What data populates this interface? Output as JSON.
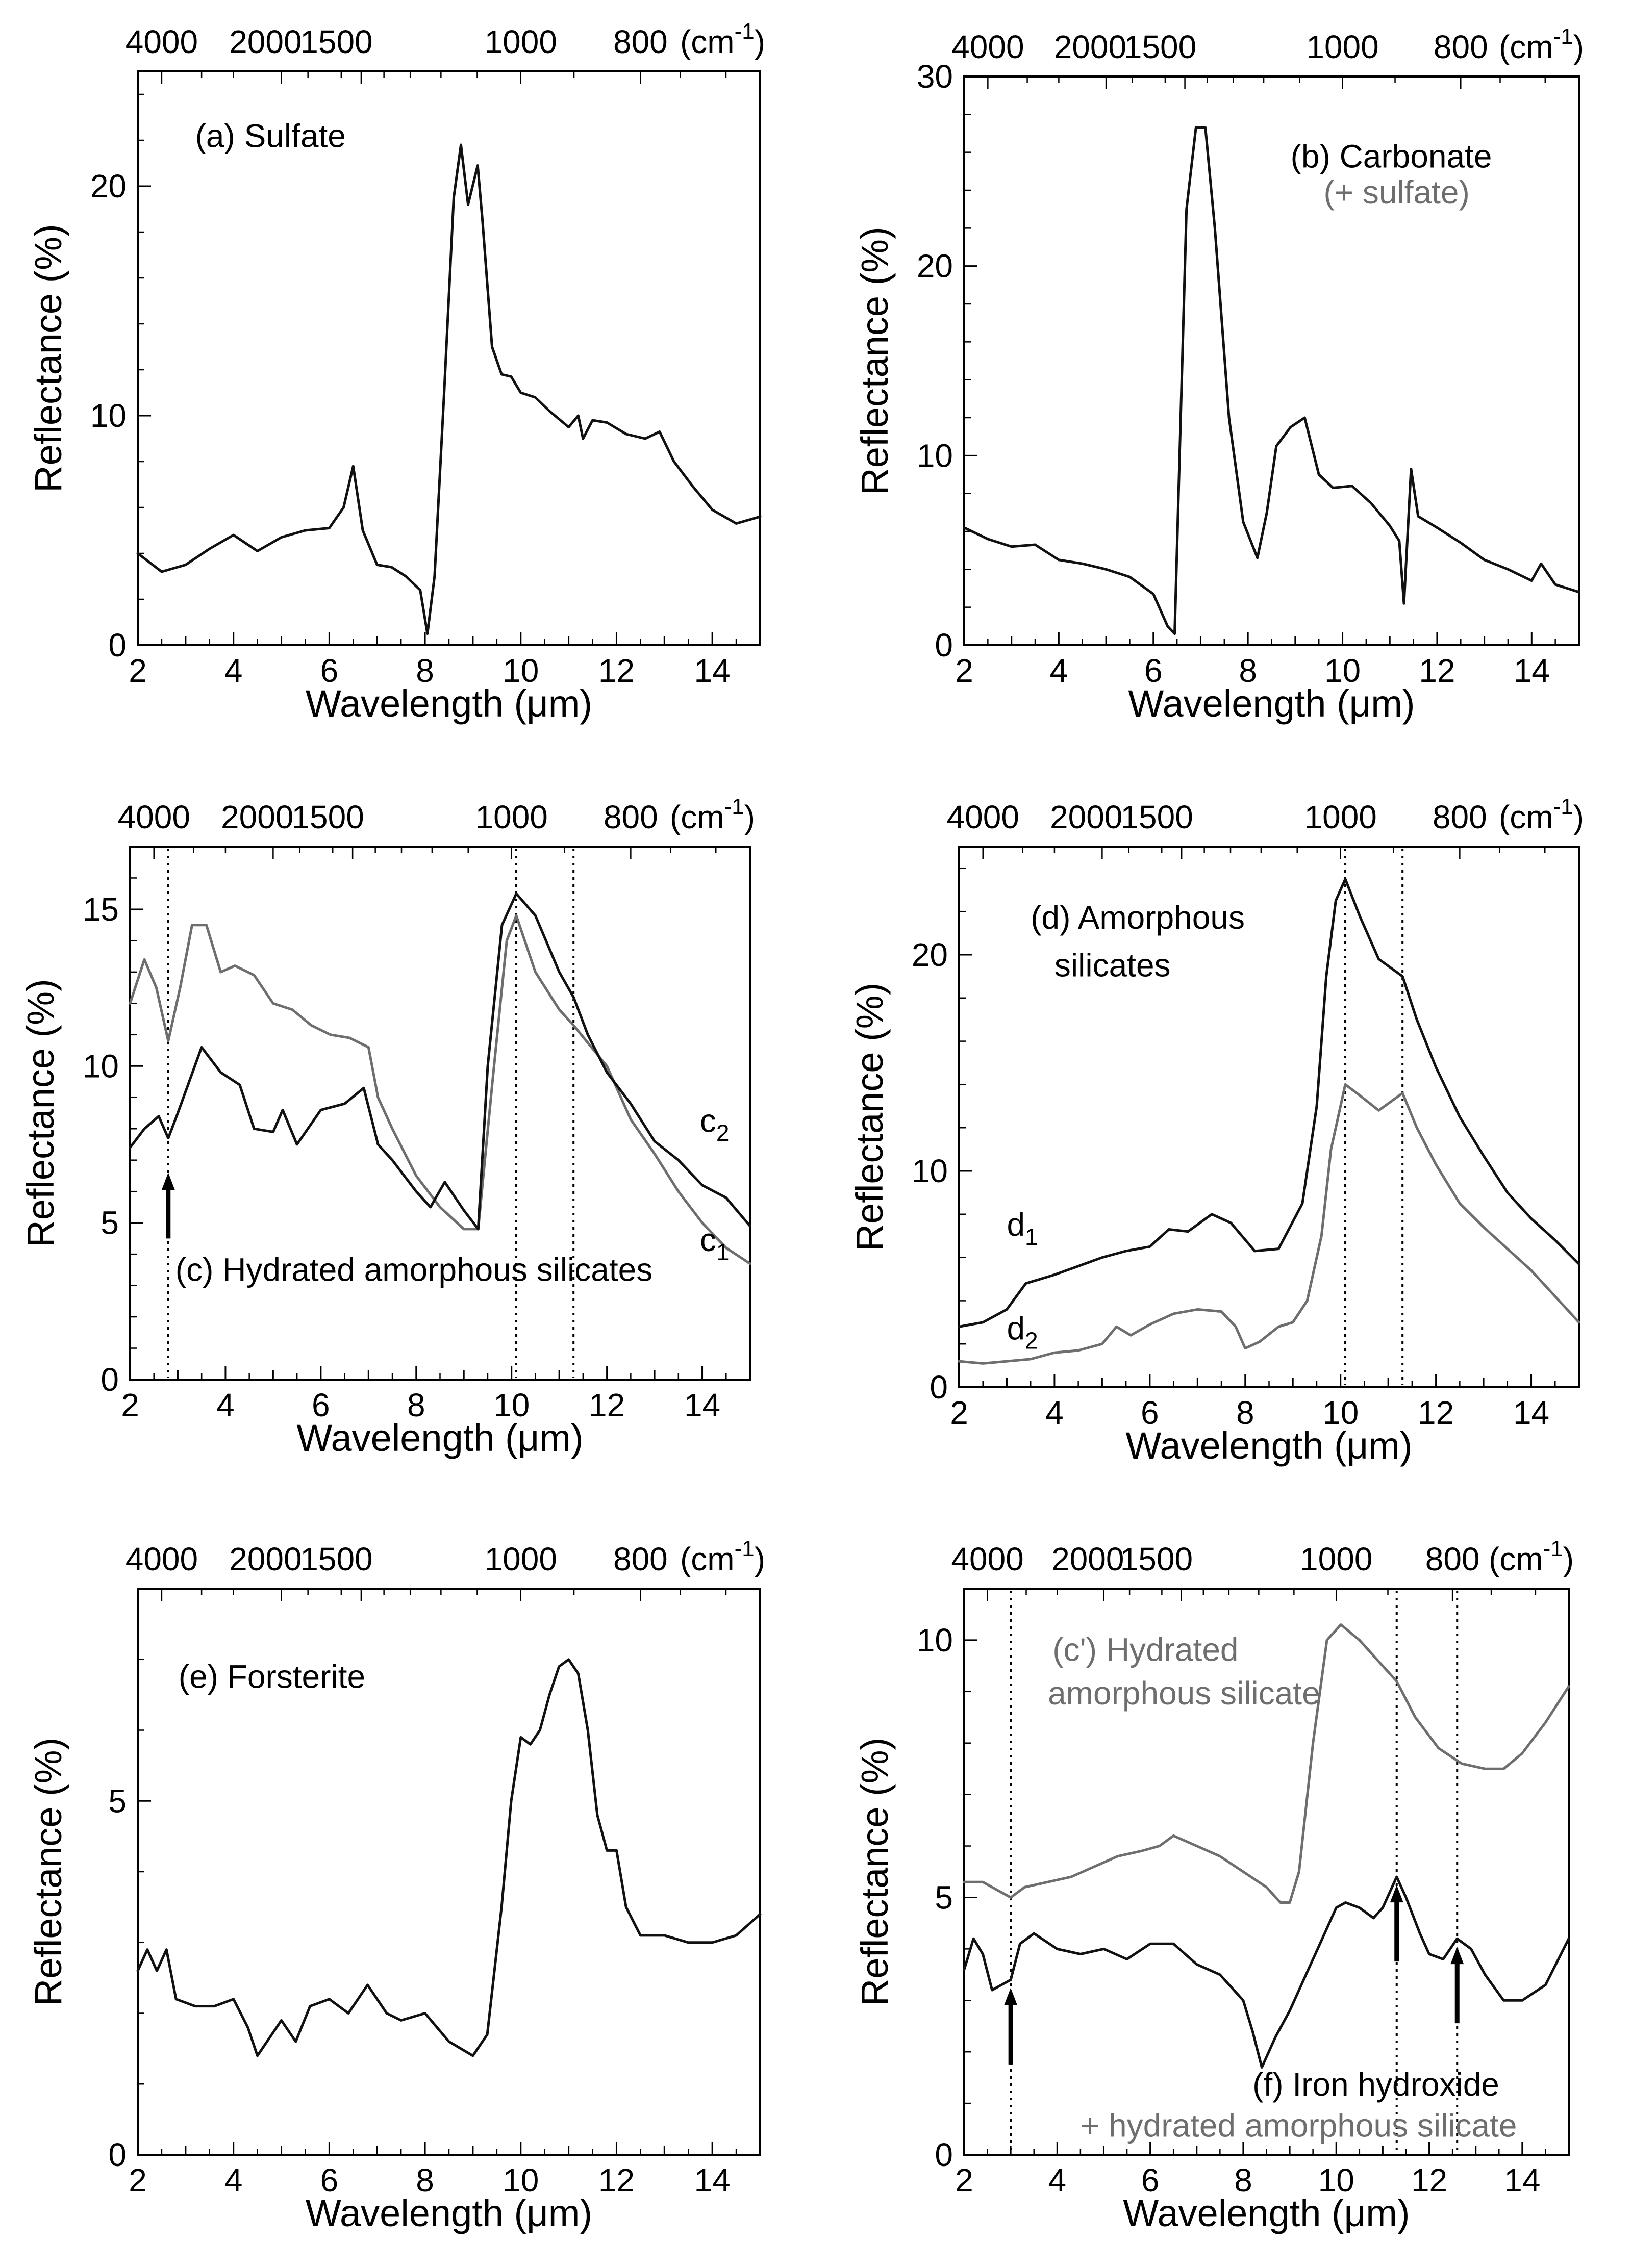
{
  "colors": {
    "black": "#111111",
    "gray": "#6e6e6e",
    "ink": "#000000"
  },
  "chart_data": [
    {
      "type": "line",
      "panel": "a",
      "title": "(a) Sulfate",
      "xlabel": "Wavelength (μm)",
      "ylabel": "Reflectance (%)",
      "xlim": [
        2,
        15
      ],
      "ylim": [
        0,
        25
      ],
      "x_ticks": [
        2,
        4,
        6,
        8,
        10,
        12,
        14
      ],
      "y_ticks": [
        0,
        10,
        20
      ],
      "top_axis": {
        "unit": "(cm-1)",
        "labels": [
          "4000",
          "2000",
          "1500",
          "1000",
          "800"
        ],
        "wavenumbers": [
          4000,
          2000,
          1500,
          1000,
          800
        ]
      },
      "series": [
        {
          "name": "Sulfate",
          "color": "black",
          "x": [
            2,
            2.5,
            3,
            3.5,
            4,
            4.5,
            5,
            5.5,
            6,
            6.3,
            6.5,
            6.7,
            7,
            7.3,
            7.6,
            7.9,
            8.05,
            8.2,
            8.4,
            8.6,
            8.75,
            8.9,
            9.1,
            9.2,
            9.4,
            9.6,
            9.8,
            10,
            10.3,
            10.6,
            11,
            11.2,
            11.3,
            11.5,
            11.8,
            12.2,
            12.6,
            12.9,
            13.2,
            13.6,
            14,
            14.5,
            15
          ],
          "y": [
            4,
            3.2,
            3.5,
            4.2,
            4.8,
            4.1,
            4.7,
            5.0,
            5.1,
            6.0,
            7.8,
            5.0,
            3.5,
            3.4,
            3.0,
            2.4,
            0.5,
            3.0,
            11.0,
            19.5,
            21.8,
            19.2,
            20.9,
            18.5,
            13.0,
            11.8,
            11.7,
            11.0,
            10.8,
            10.2,
            9.5,
            10.0,
            9.0,
            9.8,
            9.7,
            9.2,
            9.0,
            9.3,
            8.0,
            6.9,
            5.9,
            5.3,
            5.6
          ]
        }
      ]
    },
    {
      "type": "line",
      "panel": "b",
      "title": "(b) Carbonate",
      "subtitle": "(+ sulfate)",
      "xlabel": "Wavelength (μm)",
      "ylabel": "Reflectance (%)",
      "xlim": [
        2,
        15
      ],
      "ylim": [
        0,
        30
      ],
      "x_ticks": [
        2,
        4,
        6,
        8,
        10,
        12,
        14
      ],
      "y_ticks": [
        0,
        10,
        20,
        30
      ],
      "top_axis": {
        "unit": "(cm-1)",
        "labels": [
          "4000",
          "2000",
          "1500",
          "1000",
          "800"
        ],
        "wavenumbers": [
          4000,
          2000,
          1500,
          1000,
          800
        ]
      },
      "series": [
        {
          "name": "Carbonate",
          "color": "black",
          "x": [
            2,
            2.5,
            3,
            3.5,
            4,
            4.5,
            5,
            5.5,
            6,
            6.3,
            6.45,
            6.7,
            6.9,
            7.1,
            7.3,
            7.6,
            7.9,
            8.2,
            8.4,
            8.6,
            8.9,
            9.2,
            9.5,
            9.8,
            10.2,
            10.6,
            11,
            11.2,
            11.3,
            11.45,
            11.6,
            12,
            12.5,
            13,
            13.5,
            14,
            14.2,
            14.5,
            15
          ],
          "y": [
            6.2,
            5.6,
            5.2,
            5.3,
            4.5,
            4.3,
            4.0,
            3.6,
            2.7,
            1.0,
            0.6,
            23.0,
            27.3,
            27.3,
            22.0,
            12.0,
            6.5,
            4.6,
            7.0,
            10.5,
            11.5,
            12.0,
            9.0,
            8.3,
            8.4,
            7.5,
            6.3,
            5.5,
            2.2,
            9.3,
            6.8,
            6.2,
            5.4,
            4.5,
            4.0,
            3.4,
            4.3,
            3.2,
            2.8
          ]
        }
      ]
    },
    {
      "type": "line",
      "panel": "c",
      "title": "(c) Hydrated amorphous silicates",
      "xlabel": "Wavelength (μm)",
      "ylabel": "Reflectance (%)",
      "xlim": [
        2,
        15
      ],
      "ylim": [
        0,
        17
      ],
      "x_ticks": [
        2,
        4,
        6,
        8,
        10,
        12,
        14
      ],
      "y_ticks": [
        0,
        5,
        10,
        15
      ],
      "top_axis": {
        "unit": "(cm-1)",
        "labels": [
          "4000",
          "2000",
          "1500",
          "1000",
          "800"
        ],
        "wavenumbers": [
          4000,
          2000,
          1500,
          1000,
          800
        ]
      },
      "vlines": [
        2.8,
        10.1,
        11.3
      ],
      "arrow_at": 2.8,
      "series": [
        {
          "name": "c1",
          "label": "c",
          "sub": "1",
          "color": "gray",
          "x": [
            2,
            2.3,
            2.55,
            2.8,
            3.05,
            3.3,
            3.6,
            3.9,
            4.2,
            4.6,
            5.0,
            5.4,
            5.8,
            6.2,
            6.6,
            7.0,
            7.2,
            7.5,
            8.0,
            8.5,
            9.0,
            9.3,
            9.6,
            9.9,
            10.1,
            10.5,
            11,
            11.3,
            12,
            12.5,
            13,
            13.5,
            14,
            14.5,
            15
          ],
          "y": [
            12.0,
            13.4,
            12.5,
            10.8,
            12.5,
            14.5,
            14.5,
            13.0,
            13.2,
            12.9,
            12.0,
            11.8,
            11.3,
            11.0,
            10.9,
            10.6,
            9.0,
            8.0,
            6.5,
            5.5,
            4.8,
            4.8,
            9.5,
            14.0,
            14.8,
            13.0,
            11.8,
            11.3,
            10.0,
            8.3,
            7.2,
            6.0,
            5.0,
            4.2,
            3.7
          ]
        },
        {
          "name": "c2",
          "label": "c",
          "sub": "2",
          "color": "black",
          "x": [
            2,
            2.3,
            2.6,
            2.8,
            3.0,
            3.5,
            3.9,
            4.3,
            4.6,
            5.0,
            5.2,
            5.5,
            6.0,
            6.5,
            6.9,
            7.2,
            7.5,
            8.0,
            8.3,
            8.6,
            9.0,
            9.3,
            9.5,
            9.8,
            10.1,
            10.5,
            11,
            11.3,
            11.6,
            12,
            12.5,
            13,
            13.5,
            14,
            14.5,
            15
          ],
          "y": [
            7.4,
            8.0,
            8.4,
            7.7,
            8.5,
            10.6,
            9.8,
            9.4,
            8.0,
            7.9,
            8.6,
            7.5,
            8.6,
            8.8,
            9.3,
            7.5,
            7.0,
            6.0,
            5.5,
            6.3,
            5.4,
            4.8,
            10.0,
            14.5,
            15.5,
            14.8,
            13.0,
            12.2,
            11.0,
            9.8,
            8.8,
            7.6,
            7.0,
            6.2,
            5.8,
            4.9
          ]
        }
      ]
    },
    {
      "type": "line",
      "panel": "d",
      "title": "(d) Amorphous",
      "subtitle": "silicates",
      "xlabel": "Wavelength (μm)",
      "ylabel": "Reflectance (%)",
      "xlim": [
        2,
        15
      ],
      "ylim": [
        0,
        25
      ],
      "x_ticks": [
        2,
        4,
        6,
        8,
        10,
        12,
        14
      ],
      "y_ticks": [
        0,
        10,
        20
      ],
      "top_axis": {
        "unit": "(cm-1)",
        "labels": [
          "4000",
          "2000",
          "1500",
          "1000",
          "800"
        ],
        "wavenumbers": [
          4000,
          2000,
          1500,
          1000,
          800
        ]
      },
      "vlines": [
        10.1,
        11.3
      ],
      "series": [
        {
          "name": "d1",
          "label": "d",
          "sub": "1",
          "color": "black",
          "x": [
            2,
            2.5,
            3,
            3.4,
            4,
            4.5,
            5,
            5.5,
            6,
            6.4,
            6.8,
            7.3,
            7.7,
            8.2,
            8.7,
            9.2,
            9.5,
            9.7,
            9.9,
            10.1,
            10.4,
            10.8,
            11.3,
            11.6,
            12,
            12.5,
            13,
            13.5,
            14,
            14.5,
            15
          ],
          "y": [
            2.8,
            3.0,
            3.6,
            4.8,
            5.2,
            5.6,
            6.0,
            6.3,
            6.5,
            7.3,
            7.2,
            8.0,
            7.6,
            6.3,
            6.4,
            8.5,
            13.0,
            19.0,
            22.5,
            23.5,
            21.8,
            19.8,
            19.0,
            17.0,
            14.8,
            12.5,
            10.7,
            9.0,
            7.8,
            6.8,
            5.7
          ]
        },
        {
          "name": "d2",
          "label": "d",
          "sub": "2",
          "color": "gray",
          "x": [
            2,
            2.5,
            3,
            3.5,
            4,
            4.5,
            5,
            5.3,
            5.6,
            6,
            6.5,
            7.0,
            7.5,
            7.8,
            8.0,
            8.3,
            8.7,
            9.0,
            9.3,
            9.6,
            9.8,
            10.1,
            10.4,
            10.8,
            11.3,
            11.6,
            12,
            12.5,
            13,
            13.5,
            14,
            14.5,
            15
          ],
          "y": [
            1.2,
            1.1,
            1.2,
            1.3,
            1.6,
            1.7,
            2.0,
            2.8,
            2.4,
            2.9,
            3.4,
            3.6,
            3.5,
            2.8,
            1.8,
            2.1,
            2.8,
            3.0,
            4.0,
            7.0,
            11.0,
            14.0,
            13.5,
            12.8,
            13.6,
            12.0,
            10.3,
            8.5,
            7.4,
            6.4,
            5.4,
            4.2,
            3.0
          ]
        }
      ]
    },
    {
      "type": "line",
      "panel": "e",
      "title": "(e) Forsterite",
      "xlabel": "Wavelength (μm)",
      "ylabel": "Reflectance (%)",
      "xlim": [
        2,
        15
      ],
      "ylim": [
        0,
        8
      ],
      "x_ticks": [
        2,
        4,
        6,
        8,
        10,
        12,
        14
      ],
      "y_ticks": [
        0,
        5
      ],
      "top_axis": {
        "unit": "(cm-1)",
        "labels": [
          "4000",
          "2000",
          "1500",
          "1000",
          "800"
        ],
        "wavenumbers": [
          4000,
          2000,
          1500,
          1000,
          800
        ]
      },
      "series": [
        {
          "name": "Forsterite",
          "color": "black",
          "x": [
            2,
            2.2,
            2.4,
            2.6,
            2.8,
            3.2,
            3.6,
            4.0,
            4.3,
            4.5,
            4.7,
            5.0,
            5.3,
            5.6,
            6.0,
            6.4,
            6.8,
            7.2,
            7.5,
            8.0,
            8.5,
            9.0,
            9.3,
            9.6,
            9.8,
            10.0,
            10.2,
            10.4,
            10.6,
            10.8,
            11.0,
            11.2,
            11.4,
            11.6,
            11.8,
            12.0,
            12.2,
            12.5,
            13,
            13.5,
            14,
            14.5,
            15
          ],
          "y": [
            2.6,
            2.9,
            2.6,
            2.9,
            2.2,
            2.1,
            2.1,
            2.2,
            1.8,
            1.4,
            1.6,
            1.9,
            1.6,
            2.1,
            2.2,
            2.0,
            2.4,
            2.0,
            1.9,
            2.0,
            1.6,
            1.4,
            1.7,
            3.5,
            5.0,
            5.9,
            5.8,
            6.0,
            6.5,
            6.9,
            7.0,
            6.8,
            6.0,
            4.8,
            4.3,
            4.3,
            3.5,
            3.1,
            3.1,
            3.0,
            3.0,
            3.1,
            3.4
          ]
        }
      ]
    },
    {
      "type": "line",
      "panel": "f",
      "title": "(f) Iron hydroxide",
      "subtitle": "+ hydrated amorphous silicate",
      "xlabel": "Wavelength (μm)",
      "ylabel": "Reflectance (%)",
      "xlim": [
        2,
        15
      ],
      "ylim": [
        0,
        11
      ],
      "x_ticks": [
        2,
        4,
        6,
        8,
        10,
        12,
        14
      ],
      "y_ticks": [
        0,
        5,
        10
      ],
      "top_axis": {
        "unit": "(cm-1)",
        "labels": [
          "4000",
          "2000",
          "1500",
          "1000",
          "800"
        ],
        "wavenumbers": [
          4000,
          2000,
          1500,
          1000,
          800
        ]
      },
      "vlines": [
        3.0,
        11.3,
        12.6
      ],
      "arrows_at": [
        3.0,
        11.3,
        12.6
      ],
      "series_labels": [
        {
          "text_1": "(c') Hydrated",
          "text_2": "amorphous silicate",
          "color": "gray"
        }
      ],
      "series": [
        {
          "name": "c'",
          "color": "gray",
          "x": [
            2,
            2.4,
            2.8,
            3.0,
            3.3,
            3.8,
            4.3,
            4.8,
            5.3,
            5.8,
            6.2,
            6.5,
            7.0,
            7.5,
            8.0,
            8.5,
            8.8,
            9.0,
            9.2,
            9.5,
            9.8,
            10.1,
            10.5,
            11,
            11.3,
            11.7,
            12.2,
            12.7,
            13.2,
            13.6,
            14,
            14.5,
            15
          ],
          "y": [
            5.3,
            5.3,
            5.1,
            5.0,
            5.2,
            5.3,
            5.4,
            5.6,
            5.8,
            5.9,
            6.0,
            6.2,
            6.0,
            5.8,
            5.5,
            5.2,
            4.9,
            4.9,
            5.5,
            8.0,
            10.0,
            10.3,
            10.0,
            9.5,
            9.2,
            8.5,
            7.9,
            7.6,
            7.5,
            7.5,
            7.8,
            8.4,
            9.1
          ]
        },
        {
          "name": "f",
          "color": "black",
          "x": [
            2,
            2.2,
            2.4,
            2.6,
            2.8,
            3.0,
            3.2,
            3.5,
            4.0,
            4.5,
            5.0,
            5.5,
            6.0,
            6.5,
            7.0,
            7.5,
            8.0,
            8.2,
            8.4,
            8.7,
            9.0,
            9.3,
            9.6,
            10.0,
            10.2,
            10.5,
            10.8,
            11.0,
            11.3,
            11.5,
            11.8,
            12.0,
            12.3,
            12.6,
            12.9,
            13.2,
            13.6,
            14,
            14.5,
            15
          ],
          "y": [
            3.6,
            4.2,
            3.9,
            3.2,
            3.3,
            3.4,
            4.1,
            4.3,
            4.0,
            3.9,
            4.0,
            3.8,
            4.1,
            4.1,
            3.7,
            3.5,
            3.0,
            2.4,
            1.7,
            2.3,
            2.8,
            3.4,
            4.0,
            4.8,
            4.9,
            4.8,
            4.6,
            4.8,
            5.4,
            5.0,
            4.3,
            3.9,
            3.8,
            4.2,
            4.0,
            3.5,
            3.0,
            3.0,
            3.3,
            4.2
          ]
        }
      ]
    }
  ]
}
